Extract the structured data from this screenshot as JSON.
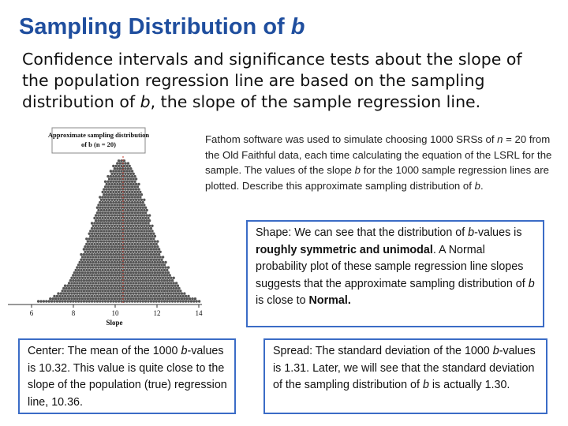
{
  "title": {
    "text": "Sampling Distribution of ",
    "var": "b"
  },
  "intro": {
    "part1": "Confidence intervals and significance tests about the slope of the population regression line are based on the sampling distribution of ",
    "var": "b",
    "part2": ", the slope of the sample regression line."
  },
  "figure": {
    "caption_line1": "Approximate sampling distribution",
    "caption_line2": "of b (n = 20)",
    "xlabel": "Slope",
    "ticks": [
      "6",
      "8",
      "10",
      "12",
      "14"
    ],
    "dot_color": "#555555",
    "mean_line_color": "#c0392b"
  },
  "fathom": {
    "p1": "Fathom software was used to simulate choosing 1000 SRSs of ",
    "n": "n",
    "p2": " = 20 from the Old Faithful data, each time calculating the equation of the LSRL for the sample. The values of the slope ",
    "b1": "b",
    "p3": " for the 1000 sample regression lines are plotted. Describe this approximate sampling distribution of ",
    "b2": "b",
    "p4": "."
  },
  "shape": {
    "label": "Shape",
    "t1": ": We can see that the distribution of ",
    "b1": "b",
    "t2": "-values is ",
    "bold": "roughly symmetric and unimodal",
    "t3": ". A Normal probability plot of these sample regression line slopes suggests that the approximate sampling distribution of ",
    "b2": "b",
    "t4": " is close to ",
    "normal": "Normal",
    "t5": "."
  },
  "center": {
    "label": "Center",
    "t1": ": The mean of the 1000 ",
    "b": "b",
    "t2": "-values is 10.32. This value is quite close to the slope of the population (true) regression line, 10.36."
  },
  "spread": {
    "label": "Spread",
    "t1": ": The standard deviation of the 1000 ",
    "b1": "b",
    "t2": "-values is 1.31. Later, we will see that the standard deviation of the sampling distribution of ",
    "b2": "b",
    "t3": " is actually 1.30."
  },
  "colors": {
    "title": "#1f4e9e",
    "box_border": "#3b6cc6"
  }
}
